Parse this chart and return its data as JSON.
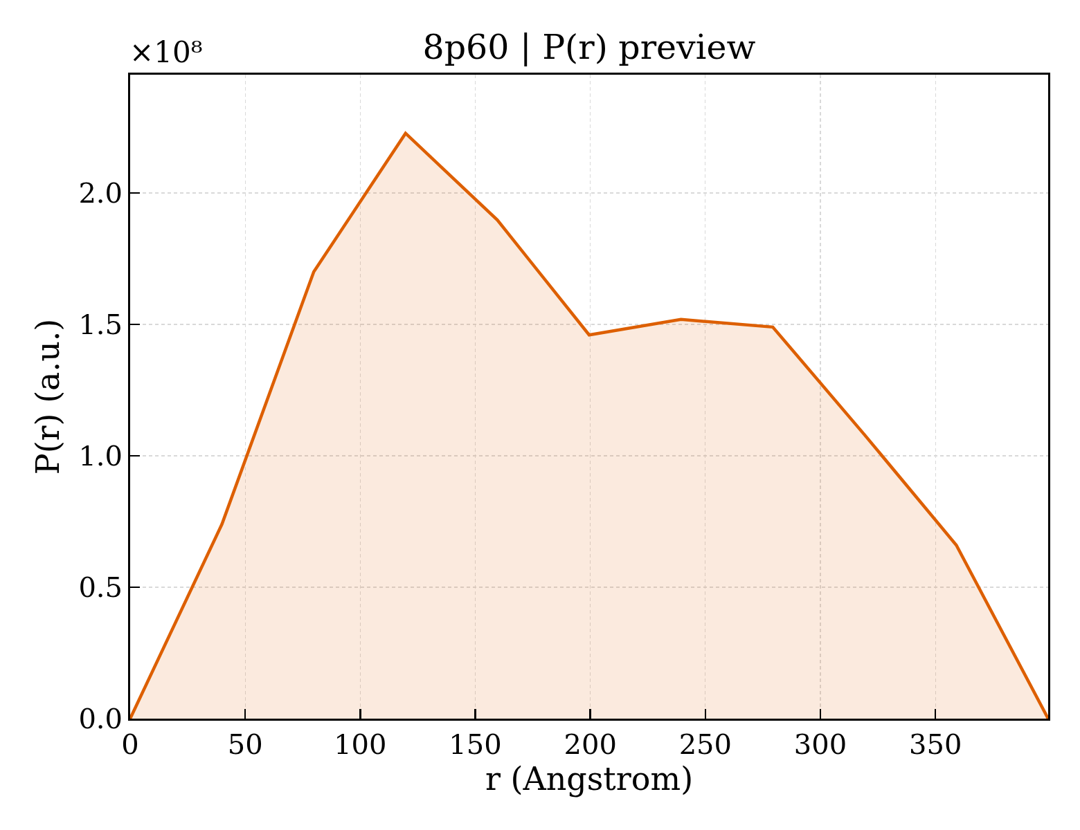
{
  "chart_data": {
    "type": "area",
    "title": "8p60 | P(r) preview",
    "xlabel": "r (Angstrom)",
    "ylabel": "P(r) (a.u.)",
    "annotations": [
      "×10⁸"
    ],
    "x": [
      0,
      39.9,
      79.8,
      119.7,
      159.6,
      199.5,
      239.4,
      279.3,
      319.2,
      359.1,
      399
    ],
    "series": [
      {
        "color": "#dd5f00",
        "values": [
          0,
          0.74,
          1.7,
          2.227,
          1.897,
          1.46,
          1.519,
          1.49,
          1.08,
          0.66,
          0
        ]
      }
    ],
    "xlim": [
      0,
      399
    ],
    "ylim": [
      0,
      2.45
    ],
    "xticks": [
      0,
      50,
      100,
      150,
      200,
      250,
      300,
      350
    ],
    "yticks": [
      {
        "value": 0,
        "label": "0.0"
      },
      {
        "value": 0.5,
        "label": "0.5"
      },
      {
        "value": 1,
        "label": "1.0"
      },
      {
        "value": 1.5,
        "label": "1.5"
      },
      {
        "value": 2,
        "label": "2.0"
      }
    ],
    "grid": true
  }
}
